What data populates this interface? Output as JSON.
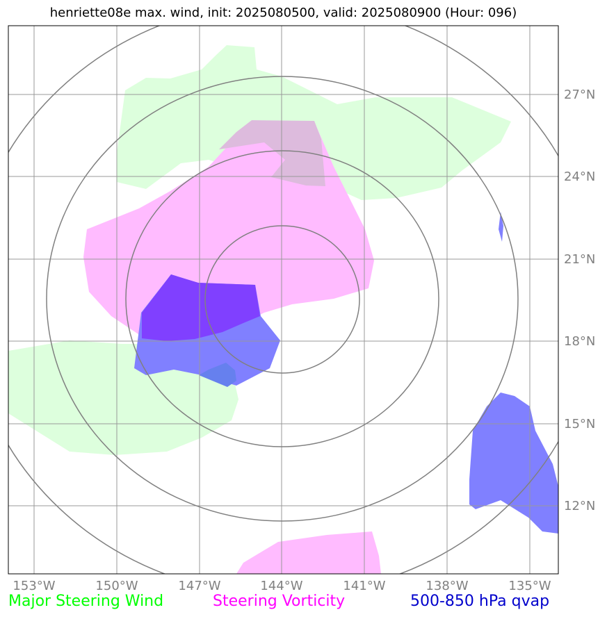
{
  "title": "henriette08e max. wind, init: 2025080500, valid: 2025080900 (Hour: 096)",
  "map": {
    "lon_ticks": [
      "153°W",
      "150°W",
      "147°W",
      "144°W",
      "141°W",
      "138°W",
      "135°W"
    ],
    "lat_ticks": [
      "27°N",
      "24°N",
      "21°N",
      "18°N",
      "15°N",
      "12°N"
    ],
    "lon_range": [
      -154,
      -133
    ],
    "lat_range": [
      9.8,
      29.8
    ],
    "rings": "range rings centered near 18.8°N, 144°W"
  },
  "legend": [
    {
      "label": "Major Steering Wind",
      "color": "#00ff00"
    },
    {
      "label": "Steering Vorticity",
      "color": "#ff00ff"
    },
    {
      "label": "500-850 hPa qvap",
      "color": "#0000cc"
    }
  ],
  "colors": {
    "wind_fill": "#ddffdd",
    "vorticity_fill": "#ffbbff",
    "qvap_fill": "#8080ff",
    "overlap_fill": "#8040ff",
    "grid": "#999999",
    "rings": "#808080"
  }
}
